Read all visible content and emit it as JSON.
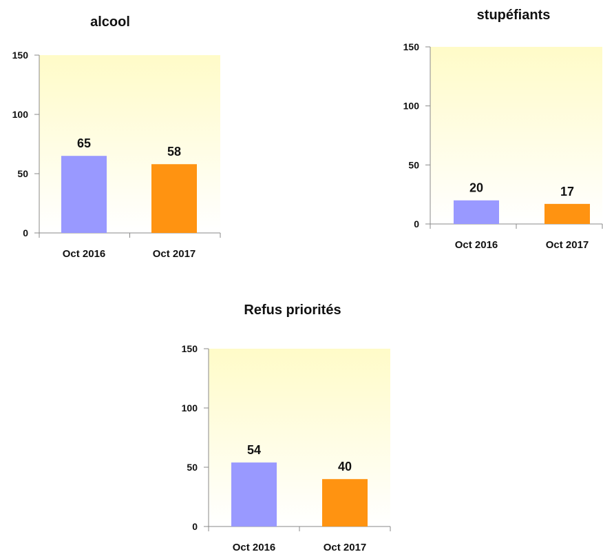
{
  "chart_data": [
    {
      "type": "bar",
      "title": "alcool",
      "categories": [
        "Oct 2016",
        "Oct 2017"
      ],
      "values": [
        65,
        58
      ],
      "ylim": [
        0,
        150
      ],
      "yticks": [
        0,
        50,
        100,
        150
      ],
      "grid": false,
      "colors": [
        "#9999ff",
        "#ff9311"
      ]
    },
    {
      "type": "bar",
      "title": "stupéfiants",
      "categories": [
        "Oct 2016",
        "Oct 2017"
      ],
      "values": [
        20,
        17
      ],
      "ylim": [
        0,
        150
      ],
      "yticks": [
        0,
        50,
        100,
        150
      ],
      "grid": false,
      "colors": [
        "#9999ff",
        "#ff9311"
      ]
    },
    {
      "type": "bar",
      "title": "Refus priorités",
      "categories": [
        "Oct 2016",
        "Oct 2017"
      ],
      "values": [
        54,
        40
      ],
      "ylim": [
        0,
        150
      ],
      "yticks": [
        0,
        50,
        100,
        150
      ],
      "grid": false,
      "colors": [
        "#9999ff",
        "#ff9311"
      ]
    }
  ],
  "background": {
    "top": "#fffbc8",
    "bottom": "#ffffff"
  }
}
